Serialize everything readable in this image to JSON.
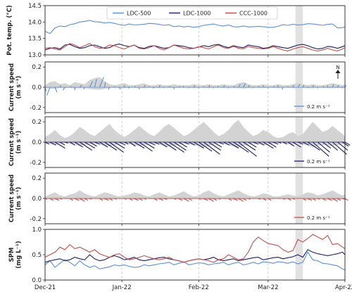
{
  "chart_data": [
    {
      "type": "line",
      "ylabel": "Pot. temp. (°C)",
      "ylim": [
        13.0,
        14.5
      ],
      "yticks": [
        13.0,
        13.5,
        14.0,
        14.5
      ],
      "ytick_labels": [
        "13.0",
        "13.5",
        "14.0",
        "14.5"
      ],
      "x": [
        0,
        2,
        4,
        6,
        8,
        10,
        12,
        14,
        16,
        18,
        20,
        22,
        24,
        26,
        28,
        30,
        32,
        34,
        36,
        38,
        40,
        42,
        44,
        46,
        48,
        50,
        52,
        54,
        56,
        58,
        60,
        62,
        64,
        66,
        68,
        70,
        72,
        74,
        76,
        78,
        80,
        82,
        84,
        86,
        88,
        90,
        92,
        94,
        96,
        98,
        100,
        102,
        104,
        106,
        108,
        110,
        112,
        114,
        116,
        118,
        120,
        121
      ],
      "legend": [
        "LDC-500",
        "LDC-1000",
        "CCC-1000"
      ],
      "series": [
        {
          "name": "LDC-500",
          "color": "#5b8ed8",
          "values": [
            13.72,
            13.65,
            13.82,
            13.88,
            13.86,
            13.92,
            13.95,
            14.0,
            14.02,
            14.05,
            14.01,
            14.0,
            13.97,
            13.99,
            13.96,
            13.92,
            13.9,
            13.94,
            13.91,
            13.92,
            13.93,
            13.96,
            13.95,
            13.93,
            13.9,
            13.92,
            13.86,
            13.88,
            13.85,
            13.87,
            13.84,
            13.86,
            13.9,
            13.92,
            13.94,
            13.9,
            13.88,
            13.91,
            13.86,
            13.85,
            13.88,
            13.85,
            13.86,
            13.87,
            13.86,
            13.84,
            13.84,
            13.87,
            13.92,
            13.9,
            13.93,
            13.91,
            13.92,
            13.95,
            13.94,
            13.92,
            13.9,
            13.93,
            13.94,
            13.82,
            13.83,
            13.85
          ]
        },
        {
          "name": "LDC-1000",
          "color": "#1c1c5e",
          "values": [
            13.15,
            13.2,
            13.22,
            13.18,
            13.3,
            13.32,
            13.25,
            13.2,
            13.22,
            13.28,
            13.3,
            13.25,
            13.2,
            13.22,
            13.3,
            13.33,
            13.28,
            13.25,
            13.3,
            13.22,
            13.2,
            13.26,
            13.28,
            13.24,
            13.2,
            13.22,
            13.3,
            13.28,
            13.26,
            13.22,
            13.2,
            13.24,
            13.28,
            13.25,
            13.3,
            13.32,
            13.26,
            13.22,
            13.28,
            13.24,
            13.22,
            13.3,
            13.27,
            13.25,
            13.2,
            13.22,
            13.28,
            13.25,
            13.22,
            13.2,
            13.25,
            13.3,
            13.32,
            13.28,
            13.22,
            13.18,
            13.2,
            13.26,
            13.24,
            13.2,
            13.25,
            13.28
          ]
        },
        {
          "name": "CCC-1000",
          "color": "#c0504d",
          "values": [
            13.2,
            13.22,
            13.18,
            13.15,
            13.25,
            13.35,
            13.3,
            13.22,
            13.28,
            13.35,
            13.25,
            13.2,
            13.22,
            13.3,
            13.28,
            13.22,
            13.18,
            13.25,
            13.3,
            13.2,
            13.18,
            13.22,
            13.28,
            13.2,
            13.15,
            13.22,
            13.3,
            13.25,
            13.2,
            13.18,
            13.2,
            13.25,
            13.22,
            13.18,
            13.25,
            13.3,
            13.22,
            13.2,
            13.26,
            13.2,
            13.18,
            13.26,
            13.22,
            13.2,
            13.18,
            13.2,
            13.25,
            13.2,
            13.15,
            13.12,
            13.18,
            13.22,
            13.25,
            13.2,
            13.15,
            13.12,
            13.15,
            13.2,
            13.15,
            13.12,
            13.18,
            13.22
          ]
        }
      ]
    },
    {
      "type": "quiver",
      "ylabel": "Current speed (m s⁻¹)",
      "ylim": [
        -0.25,
        0.25
      ],
      "yticks": [
        -0.2,
        0.0,
        0.2
      ],
      "ytick_labels": [
        "-0.2",
        "0.0",
        "0.2"
      ],
      "color": "#5b8ed8",
      "scale_label": "0.2 m s⁻¹",
      "north_label": "N",
      "envelope": [
        0.02,
        0.05,
        0.06,
        0.03,
        0.04,
        0.02,
        0.05,
        0.04,
        0.03,
        0.07,
        0.09,
        0.1,
        0.06,
        0.03,
        0.02,
        0.03,
        0.04,
        0.02,
        0.02,
        0.03,
        0.04,
        0.02,
        0.02,
        0.03,
        0.02,
        0.02,
        0.03,
        0.02,
        0.02,
        0.02,
        0.03,
        0.02,
        0.02,
        0.03,
        0.02,
        0.02,
        0.03,
        0.02,
        0.02,
        0.04,
        0.05,
        0.03,
        0.02,
        0.02,
        0.03,
        0.02,
        0.02,
        0.03,
        0.02,
        0.02,
        0.03,
        0.04,
        0.03,
        0.02,
        0.03,
        0.02,
        0.02,
        0.03,
        0.04,
        0.03,
        0.02,
        0.03
      ],
      "u": [
        0.01,
        -0.03,
        0.02,
        0.01,
        -0.02,
        0.01,
        0.0,
        0.02,
        -0.01,
        0.03,
        0.02,
        0.04,
        0.01,
        -0.01,
        0.0,
        0.01,
        0.0,
        -0.01,
        0.01,
        0.0,
        0.01,
        0.0,
        -0.01,
        0.01,
        0.0,
        0.01,
        0.0,
        0.01,
        -0.01,
        0.0,
        0.01,
        0.0,
        0.0,
        0.01,
        0.0,
        -0.01,
        0.01,
        0.0,
        0.01,
        0.02,
        0.02,
        0.01,
        0.0,
        0.01,
        0.0,
        0.0,
        0.01,
        0.0,
        -0.01,
        0.0,
        0.01,
        0.02,
        0.01,
        0.0,
        0.01,
        0.0,
        0.01,
        0.0,
        0.01,
        0.01,
        0.0,
        0.01
      ],
      "v": [
        -0.04,
        -0.08,
        -0.05,
        0.02,
        -0.03,
        0.01,
        -0.03,
        0.02,
        -0.02,
        0.06,
        0.08,
        0.1,
        0.05,
        -0.02,
        0.01,
        -0.02,
        0.02,
        -0.01,
        0.01,
        -0.02,
        0.02,
        0.01,
        -0.01,
        0.02,
        -0.01,
        0.01,
        -0.02,
        0.01,
        0.01,
        -0.01,
        0.02,
        -0.01,
        0.01,
        0.02,
        -0.01,
        0.01,
        0.02,
        -0.01,
        0.01,
        0.03,
        0.04,
        0.02,
        -0.01,
        0.01,
        0.02,
        -0.01,
        0.01,
        0.02,
        -0.02,
        0.01,
        0.02,
        0.03,
        0.02,
        -0.01,
        0.02,
        -0.01,
        0.01,
        0.02,
        0.03,
        0.02,
        -0.01,
        0.02
      ]
    },
    {
      "type": "quiver",
      "ylabel": "Current speed (m s⁻¹)",
      "ylim": [
        -0.25,
        0.25
      ],
      "yticks": [
        -0.2,
        0.0,
        0.2
      ],
      "ytick_labels": [
        "-0.2",
        "0.0",
        "0.2"
      ],
      "color": "#1c1c5e",
      "scale_label": "0.2 m s⁻¹",
      "envelope": [
        0.05,
        0.08,
        0.12,
        0.07,
        0.04,
        0.06,
        0.1,
        0.15,
        0.12,
        0.08,
        0.06,
        0.1,
        0.14,
        0.18,
        0.12,
        0.08,
        0.05,
        0.08,
        0.12,
        0.16,
        0.12,
        0.08,
        0.06,
        0.1,
        0.15,
        0.18,
        0.14,
        0.1,
        0.06,
        0.08,
        0.12,
        0.16,
        0.2,
        0.15,
        0.1,
        0.06,
        0.08,
        0.12,
        0.18,
        0.22,
        0.15,
        0.1,
        0.06,
        0.08,
        0.12,
        0.1,
        0.06,
        0.04,
        0.05,
        0.08,
        0.1,
        0.06,
        0.08,
        0.14,
        0.2,
        0.15,
        0.1,
        0.12,
        0.16,
        0.12,
        0.08,
        0.06
      ],
      "u": [
        0.04,
        0.06,
        0.1,
        0.05,
        0.03,
        0.05,
        0.08,
        0.12,
        0.1,
        0.07,
        0.05,
        0.08,
        0.12,
        0.14,
        0.1,
        0.06,
        0.04,
        0.06,
        0.1,
        0.13,
        0.1,
        0.06,
        0.05,
        0.08,
        0.12,
        0.15,
        0.12,
        0.08,
        0.05,
        0.06,
        0.1,
        0.13,
        0.16,
        0.12,
        0.08,
        0.05,
        0.06,
        0.1,
        0.15,
        0.18,
        0.12,
        0.08,
        0.05,
        0.06,
        0.1,
        0.08,
        0.05,
        0.03,
        0.04,
        0.06,
        0.08,
        0.05,
        0.06,
        0.12,
        0.16,
        0.12,
        0.08,
        0.1,
        0.14,
        0.1,
        0.06,
        0.05
      ],
      "v": [
        -0.02,
        -0.03,
        -0.06,
        -0.03,
        -0.01,
        -0.03,
        -0.05,
        -0.08,
        -0.06,
        -0.04,
        -0.02,
        -0.05,
        -0.08,
        -0.1,
        -0.06,
        -0.03,
        -0.02,
        -0.04,
        -0.06,
        -0.09,
        -0.06,
        -0.03,
        -0.02,
        -0.05,
        -0.08,
        -0.1,
        -0.08,
        -0.05,
        -0.02,
        -0.03,
        -0.06,
        -0.09,
        -0.12,
        -0.08,
        -0.05,
        -0.02,
        -0.03,
        -0.06,
        -0.1,
        -0.14,
        -0.08,
        -0.05,
        -0.02,
        -0.03,
        -0.06,
        -0.05,
        -0.02,
        -0.01,
        -0.02,
        -0.04,
        -0.05,
        -0.02,
        -0.03,
        -0.08,
        -0.14,
        -0.1,
        -0.06,
        -0.08,
        -0.12,
        -0.08,
        -0.04,
        -0.03
      ]
    },
    {
      "type": "quiver",
      "ylabel": "Current speed (m s⁻¹)",
      "ylim": [
        -0.25,
        0.25
      ],
      "yticks": [
        -0.2,
        0.0,
        0.2
      ],
      "ytick_labels": [
        "-0.2",
        "0.0",
        "0.2"
      ],
      "color": "#c0504d",
      "scale_label": "0.2 m s⁻¹",
      "envelope": [
        0.02,
        0.04,
        0.06,
        0.03,
        0.02,
        0.04,
        0.05,
        0.08,
        0.05,
        0.03,
        0.02,
        0.04,
        0.06,
        0.05,
        0.03,
        0.02,
        0.03,
        0.04,
        0.06,
        0.05,
        0.03,
        0.02,
        0.04,
        0.06,
        0.04,
        0.02,
        0.03,
        0.05,
        0.07,
        0.04,
        0.02,
        0.03,
        0.06,
        0.08,
        0.05,
        0.03,
        0.02,
        0.04,
        0.06,
        0.08,
        0.05,
        0.03,
        0.02,
        0.03,
        0.05,
        0.04,
        0.02,
        0.02,
        0.03,
        0.04,
        0.03,
        0.02,
        0.04,
        0.06,
        0.05,
        0.03,
        0.04,
        0.06,
        0.08,
        0.05,
        0.03,
        0.04
      ],
      "u": [
        0.02,
        0.03,
        0.04,
        0.02,
        0.01,
        0.03,
        0.04,
        0.05,
        0.03,
        0.02,
        0.01,
        0.03,
        0.04,
        0.03,
        0.02,
        0.01,
        0.02,
        0.03,
        0.04,
        0.03,
        0.02,
        0.01,
        0.03,
        0.04,
        0.03,
        0.01,
        0.02,
        0.03,
        0.05,
        0.03,
        0.01,
        0.02,
        0.04,
        0.05,
        0.03,
        0.02,
        0.01,
        0.03,
        0.04,
        0.05,
        0.03,
        0.02,
        0.01,
        0.02,
        0.03,
        0.03,
        0.01,
        0.01,
        0.02,
        0.03,
        0.02,
        0.01,
        0.03,
        0.04,
        0.03,
        0.02,
        0.03,
        0.04,
        0.05,
        0.03,
        0.02,
        0.03
      ],
      "v": [
        -0.01,
        -0.02,
        -0.02,
        -0.01,
        0.0,
        -0.02,
        -0.02,
        -0.03,
        -0.02,
        -0.01,
        0.0,
        -0.02,
        -0.02,
        -0.02,
        -0.01,
        0.0,
        -0.01,
        -0.02,
        -0.02,
        -0.02,
        -0.01,
        0.0,
        -0.02,
        -0.02,
        -0.01,
        0.0,
        -0.01,
        -0.02,
        -0.03,
        -0.02,
        0.0,
        -0.01,
        -0.02,
        -0.03,
        -0.02,
        -0.01,
        0.0,
        -0.02,
        -0.02,
        -0.03,
        -0.02,
        -0.01,
        0.0,
        -0.01,
        -0.02,
        -0.02,
        0.0,
        0.0,
        -0.01,
        -0.02,
        -0.01,
        0.0,
        -0.02,
        -0.02,
        -0.02,
        -0.01,
        -0.02,
        -0.02,
        -0.03,
        -0.02,
        -0.01,
        -0.02
      ]
    },
    {
      "type": "line",
      "ylabel": "SPM (mg L⁻¹)",
      "ylim": [
        0.0,
        1.0
      ],
      "yticks": [
        0.0,
        0.5,
        1.0
      ],
      "ytick_labels": [
        "0.0",
        "0.5",
        "1.0"
      ],
      "x": [
        0,
        2,
        4,
        6,
        8,
        10,
        12,
        14,
        16,
        18,
        20,
        22,
        24,
        26,
        28,
        30,
        32,
        34,
        36,
        38,
        40,
        42,
        44,
        46,
        48,
        50,
        52,
        54,
        56,
        58,
        60,
        62,
        64,
        66,
        68,
        70,
        72,
        74,
        76,
        78,
        80,
        82,
        84,
        86,
        88,
        90,
        92,
        94,
        96,
        98,
        100,
        102,
        104,
        106,
        108,
        110,
        112,
        114,
        116,
        118,
        120,
        121
      ],
      "series": [
        {
          "name": "LDC-500",
          "color": "#5b8ed8",
          "values": [
            0.3,
            0.38,
            0.25,
            0.33,
            0.4,
            0.35,
            0.28,
            0.38,
            0.3,
            0.25,
            0.28,
            0.22,
            0.24,
            0.26,
            0.3,
            0.28,
            0.3,
            0.27,
            0.25,
            0.26,
            0.3,
            0.28,
            0.3,
            0.32,
            0.33,
            0.35,
            0.3,
            0.33,
            0.36,
            0.3,
            0.32,
            0.34,
            0.33,
            0.3,
            0.32,
            0.33,
            0.35,
            0.3,
            0.33,
            0.35,
            0.3,
            0.32,
            0.35,
            0.32,
            0.36,
            0.35,
            0.33,
            0.36,
            0.35,
            0.33,
            0.36,
            0.32,
            0.35,
            0.55,
            0.4,
            0.38,
            0.33,
            0.32,
            0.3,
            0.28,
            0.22,
            0.2
          ]
        },
        {
          "name": "LDC-1000",
          "color": "#1c1c5e",
          "values": [
            0.35,
            0.38,
            0.4,
            0.42,
            0.38,
            0.4,
            0.45,
            0.42,
            0.4,
            0.5,
            0.42,
            0.38,
            0.4,
            0.45,
            0.48,
            0.45,
            0.4,
            0.42,
            0.45,
            0.4,
            0.38,
            0.4,
            0.42,
            0.44,
            0.45,
            0.42,
            0.4,
            0.38,
            0.35,
            0.38,
            0.4,
            0.42,
            0.4,
            0.42,
            0.45,
            0.4,
            0.38,
            0.4,
            0.42,
            0.38,
            0.4,
            0.42,
            0.44,
            0.45,
            0.4,
            0.42,
            0.44,
            0.45,
            0.42,
            0.44,
            0.46,
            0.5,
            0.45,
            0.6,
            0.55,
            0.52,
            0.5,
            0.48,
            0.5,
            0.52,
            0.55,
            0.5
          ]
        },
        {
          "name": "CCC-1000",
          "color": "#c0504d",
          "values": [
            0.45,
            0.5,
            0.55,
            0.65,
            0.6,
            0.7,
            0.62,
            0.65,
            0.6,
            0.55,
            0.6,
            0.52,
            0.48,
            0.45,
            0.5,
            0.52,
            0.45,
            0.4,
            0.42,
            0.45,
            0.48,
            0.45,
            0.42,
            0.4,
            0.42,
            0.45,
            0.4,
            0.38,
            0.35,
            0.38,
            0.4,
            0.42,
            0.4,
            0.38,
            0.35,
            0.4,
            0.42,
            0.5,
            0.45,
            0.4,
            0.42,
            0.55,
            0.75,
            0.85,
            0.78,
            0.72,
            0.7,
            0.68,
            0.6,
            0.55,
            0.58,
            0.8,
            0.75,
            0.82,
            0.9,
            0.85,
            0.8,
            0.88,
            0.7,
            0.72,
            0.65,
            0.62
          ]
        }
      ]
    }
  ],
  "x_axis": {
    "tick_labels": [
      "Dec-21",
      "Jan-22",
      "Feb-22",
      "Mar-22",
      "Apr-22"
    ],
    "tick_days": [
      0,
      31,
      62,
      90,
      121
    ],
    "xlim": [
      0,
      121
    ]
  },
  "highlight_days": [
    101,
    104
  ],
  "colors": {
    "ldc500": "#5b8ed8",
    "ldc1000": "#1c1c5e",
    "ccc1000": "#c0504d",
    "envelope": "#d3d3d3",
    "highlight": "#e2e2e2"
  }
}
